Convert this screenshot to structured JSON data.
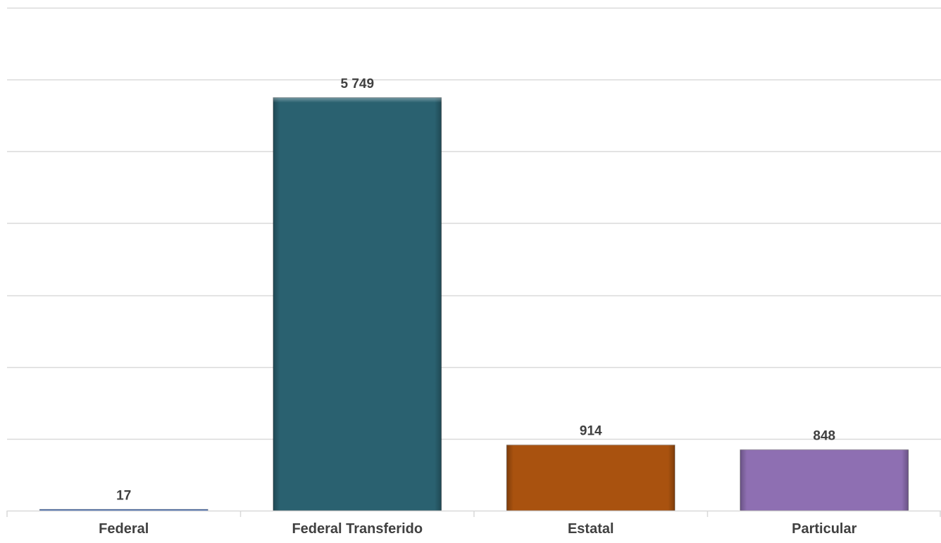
{
  "chart_data": {
    "type": "bar",
    "categories": [
      "Federal",
      "Federal Transferido",
      "Estatal",
      "Particular"
    ],
    "values": [
      17,
      5749,
      914,
      848
    ],
    "data_labels": [
      "17",
      "5 749",
      "914",
      "848"
    ],
    "colors": [
      "#4472c4",
      "#2a6170",
      "#a9520f",
      "#8e6fb2"
    ],
    "title": "",
    "xlabel": "",
    "ylabel": "",
    "ylim": [
      0,
      7000
    ],
    "ytick_step": 1000,
    "grid": true,
    "legend": "none"
  }
}
